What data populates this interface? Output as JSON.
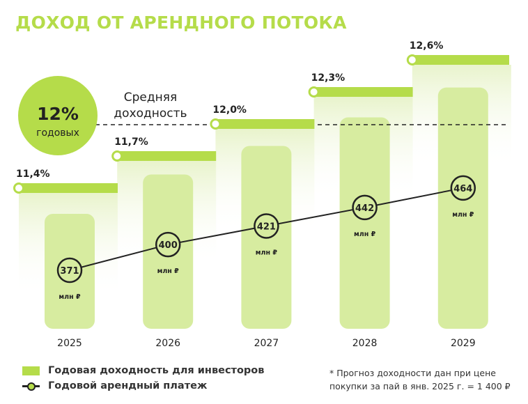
{
  "title": "ДОХОД ОТ АРЕНДНОГО ПОТОКА",
  "badge": {
    "value": "12%",
    "label": "годовых"
  },
  "average_label_1": "Средняя",
  "average_label_2": "доходность",
  "legend": {
    "yield": "Годовая доходность для инвесторов",
    "rent": "Годовой арендный платеж"
  },
  "footnote_1": "* Прогноз доходности дан при цене",
  "footnote_2": "покупки за пай в янв. 2025 г. = 1 400 ₽",
  "colors": {
    "accent": "#b5dc4a",
    "bar": "#d7eca0",
    "line": "#222222"
  },
  "chart_data": {
    "type": "bar",
    "categories": [
      "2025",
      "2026",
      "2027",
      "2028",
      "2029"
    ],
    "series": [
      {
        "name": "Годовая доходность для инвесторов",
        "values": [
          11.4,
          11.7,
          12.0,
          12.3,
          12.6
        ],
        "labels": [
          "11,4%",
          "11,7%",
          "12,0%",
          "12,3%",
          "12,6%"
        ],
        "type": "step"
      },
      {
        "name": "Годовой арендный платеж",
        "values": [
          371,
          400,
          421,
          442,
          464
        ],
        "unit": "млн ₽",
        "type": "bar+line"
      }
    ],
    "average": {
      "value": 12,
      "label": "Средняя доходность"
    }
  }
}
